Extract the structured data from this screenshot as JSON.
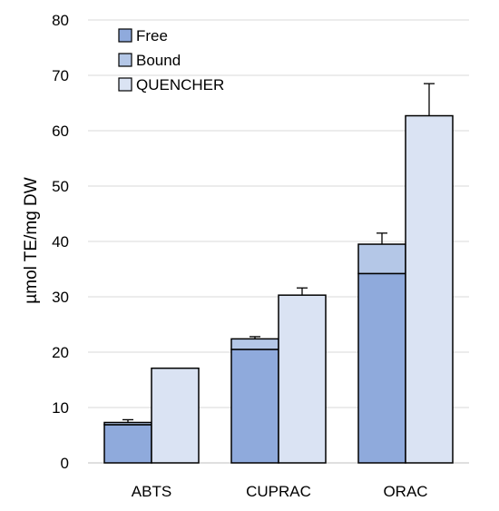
{
  "chart_data": {
    "type": "bar",
    "categories": [
      "ABTS",
      "CUPRAC",
      "ORAC"
    ],
    "ylabel": "µmol TE/mg DW",
    "xlabel": "",
    "ylim": [
      0,
      80
    ],
    "yticks": [
      0,
      10,
      20,
      30,
      40,
      50,
      60,
      70,
      80
    ],
    "grid": true,
    "legend_position": "top-left",
    "series": [
      {
        "name": "Free",
        "values": [
          6.9,
          20.5,
          34.2
        ],
        "stack": "free+bound",
        "color": "#8faadc"
      },
      {
        "name": "Bound",
        "values": [
          0.4,
          1.9,
          5.3
        ],
        "stack": "free+bound",
        "color": "#b4c7e7"
      },
      {
        "name": "QUENCHER",
        "values": [
          17.1,
          30.3,
          62.7
        ],
        "stack": "quencher",
        "color": "#dae3f3"
      }
    ],
    "error_bars": {
      "free+bound": [
        0.5,
        0.4,
        2.0
      ],
      "quencher": [
        0,
        1.3,
        5.8
      ]
    }
  }
}
